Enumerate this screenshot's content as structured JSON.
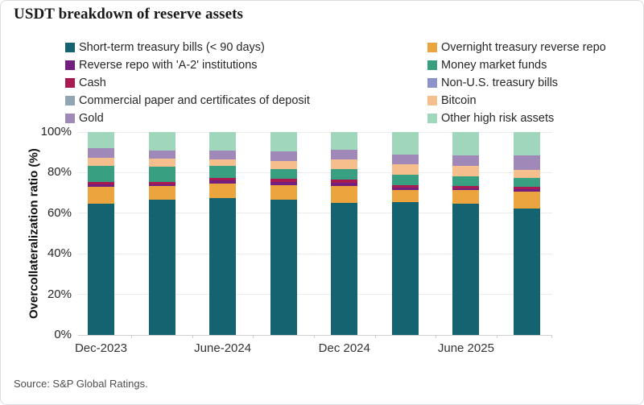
{
  "title": "USDT breakdown of reserve assets",
  "source": "Source: S&P Global Ratings.",
  "colors": {
    "background": "#ffffff",
    "gridline": "#ebebeb",
    "axis_baseline": "#cfcfcf",
    "text": "#262626"
  },
  "legend": {
    "columns": [
      [
        "short_term",
        "a2_repo",
        "cash",
        "commercial_paper",
        "gold"
      ],
      [
        "overnight_repo",
        "money_market",
        "non_us_treasury",
        "bitcoin",
        "other_high_risk"
      ]
    ]
  },
  "chart_data": {
    "type": "bar",
    "stacked": true,
    "title": "USDT breakdown of reserve assets",
    "xlabel": "",
    "ylabel": "Overcollateralization ratio (%)",
    "ylim": [
      0,
      100
    ],
    "yticks": [
      0,
      20,
      40,
      60,
      80,
      100
    ],
    "ytick_suffix": "%",
    "grid": "horizontal",
    "legend_position": "top-two-columns",
    "categories": [
      "Dec-2023",
      "",
      "June-2024",
      "",
      "Dec 2024",
      "",
      "June 2025",
      ""
    ],
    "series": [
      {
        "key": "short_term",
        "name": "Short-term treasury bills (< 90 days)",
        "color": "#136370",
        "values": [
          64.5,
          66.5,
          67.5,
          66.5,
          65.2,
          65.6,
          64.5,
          62.4
        ]
      },
      {
        "key": "overnight_repo",
        "name": "Overnight treasury reverse repo",
        "color": "#eca43e",
        "values": [
          8.5,
          7.0,
          7.2,
          7.4,
          8.4,
          6.0,
          6.8,
          8.4
        ]
      },
      {
        "key": "a2_repo",
        "name": "Reverse repo with 'A-2' institutions",
        "color": "#731f80",
        "values": [
          1.2,
          0.6,
          1.4,
          1.6,
          1.6,
          1.2,
          1.0,
          1.0
        ]
      },
      {
        "key": "cash",
        "name": "Cash",
        "color": "#a91a52",
        "values": [
          1.2,
          1.2,
          1.2,
          1.6,
          1.2,
          1.2,
          1.0,
          1.4
        ]
      },
      {
        "key": "money_market",
        "name": "Money market funds",
        "color": "#38a081",
        "values": [
          8.1,
          7.5,
          6.0,
          4.8,
          5.2,
          4.8,
          4.8,
          4.0
        ]
      },
      {
        "key": "non_us_treasury",
        "name": "Non-U.S. treasury bills",
        "color": "#8c93cb",
        "values": [
          0,
          0,
          0,
          0,
          0,
          0,
          0,
          0
        ]
      },
      {
        "key": "commercial_paper",
        "name": "Commercial paper and certificates of deposit",
        "color": "#90a7b3",
        "values": [
          0,
          0,
          0,
          0,
          0,
          0,
          0,
          0
        ]
      },
      {
        "key": "bitcoin",
        "name": "Bitcoin",
        "color": "#f4bf8d",
        "values": [
          4.0,
          4.0,
          3.2,
          4.0,
          4.8,
          5.2,
          5.2,
          4.0
        ]
      },
      {
        "key": "gold",
        "name": "Gold",
        "color": "#a089b9",
        "values": [
          4.4,
          4.0,
          4.4,
          4.4,
          4.8,
          4.8,
          5.2,
          7.2
        ]
      },
      {
        "key": "other_high_risk",
        "name": "Other high risk assets",
        "color": "#a0d6bc",
        "values": [
          8.1,
          9.2,
          9.1,
          9.7,
          8.8,
          11.2,
          11.5,
          11.6
        ]
      }
    ]
  }
}
